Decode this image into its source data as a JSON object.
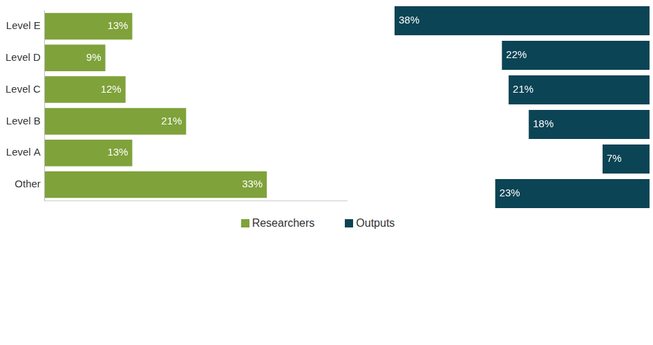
{
  "chart_data": {
    "type": "bar",
    "orientation": "horizontal",
    "categories": [
      "Level E",
      "Level D",
      "Level C",
      "Level B",
      "Level A",
      "Other"
    ],
    "series": [
      {
        "name": "Researchers",
        "color": "#7fa23a",
        "values": [
          13,
          9,
          12,
          21,
          13,
          33
        ],
        "value_labels": [
          "13%",
          "9%",
          "12%",
          "21%",
          "13%",
          "33%"
        ]
      },
      {
        "name": "Outputs",
        "color": "#0b4455",
        "values": [
          38,
          22,
          21,
          18,
          7,
          23
        ],
        "value_labels": [
          "38%",
          "22%",
          "21%",
          "18%",
          "7%",
          "23%"
        ]
      }
    ],
    "xlim": [
      0,
      45
    ],
    "data_labels": true,
    "legend": "bottom",
    "tick_labels": "y",
    "grid": false
  }
}
